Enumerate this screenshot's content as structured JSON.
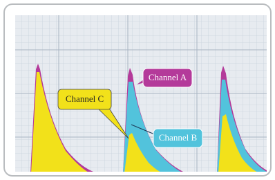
{
  "callouts": [
    {
      "label": "Channel A"
    },
    {
      "label": "Channel B"
    },
    {
      "label": "Channel C"
    }
  ]
}
